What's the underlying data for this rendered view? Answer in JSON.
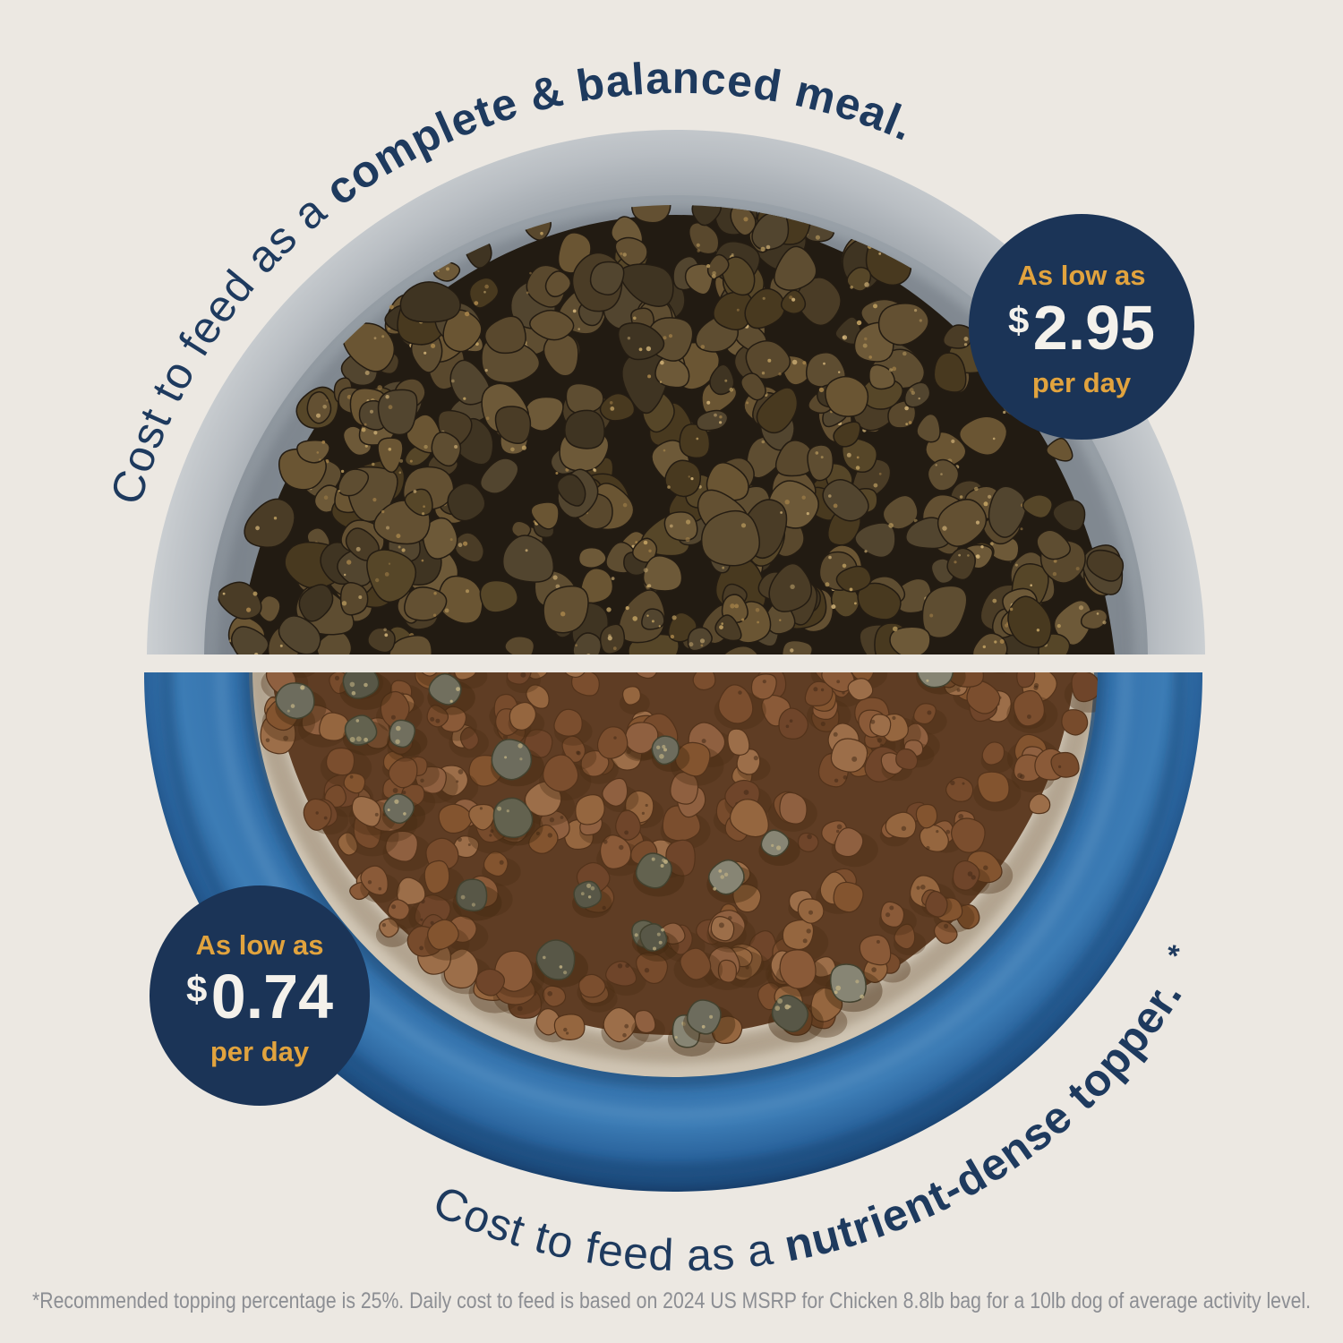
{
  "page": {
    "background_color": "#ECE8E2",
    "type": "pet-food-cost-comparison-infographic"
  },
  "top_section": {
    "caption": {
      "regular": "Cost to feed as a ",
      "bold": "complete & balanced meal."
    },
    "badge": {
      "intro": "As low as",
      "currency": "$",
      "amount": "2.95",
      "unit": "per day"
    }
  },
  "bottom_section": {
    "caption": {
      "regular": "Cost to feed as a ",
      "bold": "nutrient-dense topper.",
      "footnote_marker": "*"
    },
    "badge": {
      "intro": "As low as",
      "currency": "$",
      "amount": "0.74",
      "unit": "per day"
    }
  },
  "footnote": {
    "text": "*Recommended topping percentage is 25%. Daily cost to feed is based on 2024 US MSRP for Chicken 8.8lb bag for a 10lb dog of average activity level."
  },
  "colors": {
    "background": "#ECE8E2",
    "navy_text": "#1E3A5E",
    "badge_navy": "#1B3457",
    "gold": "#E1A33E",
    "price_white": "#F4F1EB",
    "footnote_grey": "#8C8E93",
    "bowl_blue": "#2F6FA9",
    "bowl_blue_dark": "#1C4B7C",
    "bowl_grey": "#B0B6BC",
    "bowl_interior_cream": "#E3DBCE",
    "meal_food_brown": "#57462E",
    "kibble_brown": "#8A5A38",
    "topper_grey_green": "#6D6C5D"
  }
}
